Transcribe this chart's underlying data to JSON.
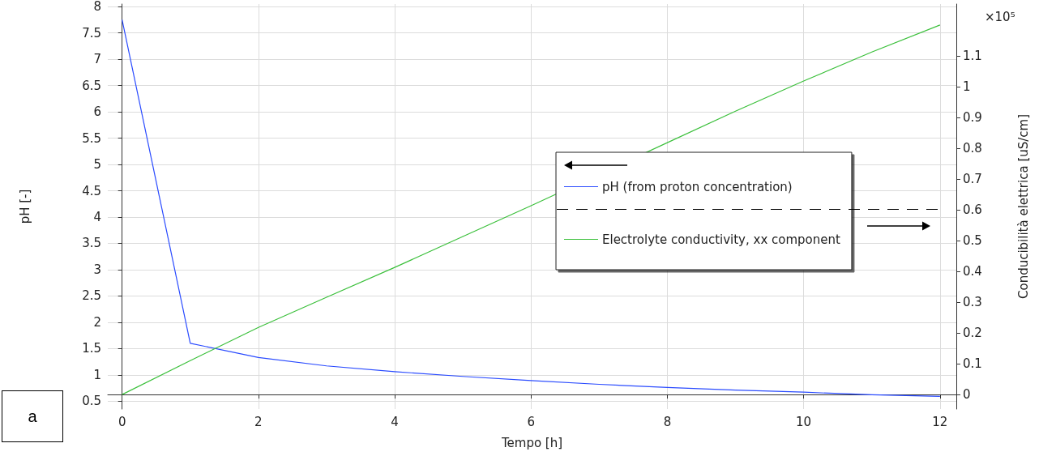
{
  "chart_data": {
    "type": "line",
    "xlabel": "Tempo [h]",
    "ylabel": "pH [-]",
    "y2label": "Conducibilità elettrica [uS/cm]",
    "x": [
      0,
      1,
      2,
      3,
      4,
      5,
      6,
      7,
      8,
      9,
      10,
      11,
      12
    ],
    "series": [
      {
        "name": "pH (from proton concentration)",
        "color": "#2a4bff",
        "values": [
          7.75,
          1.6,
          1.33,
          1.17,
          1.06,
          0.97,
          0.89,
          0.82,
          0.76,
          0.71,
          0.67,
          0.62,
          0.59
        ]
      },
      {
        "name": "Electrolyte conductivity, xx component",
        "color": "#3cc03c",
        "axis": "y2",
        "values": [
          0,
          0.11,
          0.218,
          0.316,
          0.413,
          0.513,
          0.613,
          null,
          0.818,
          0.92,
          1.018,
          1.112,
          1.2
        ]
      }
    ],
    "xlim": [
      -0.21,
      12.24
    ],
    "xticks": [
      0,
      2,
      4,
      6,
      8,
      10,
      12
    ],
    "ylim": [
      0.35,
      8.05
    ],
    "yticks": [
      0.5,
      1,
      1.5,
      2,
      2.5,
      3,
      3.5,
      4,
      4.5,
      5,
      5.5,
      6,
      6.5,
      7,
      7.5,
      8
    ],
    "y2lim": [
      -0.047,
      1.268
    ],
    "y2ticks": [
      0,
      0.1,
      0.2,
      0.3,
      0.4,
      0.5,
      0.6,
      0.7,
      0.8,
      0.9,
      1,
      1.1
    ],
    "grid": true,
    "legend": "right",
    "marker": "none",
    "line_style": "solid",
    "annotations": [
      "×10⁵",
      "a"
    ]
  }
}
